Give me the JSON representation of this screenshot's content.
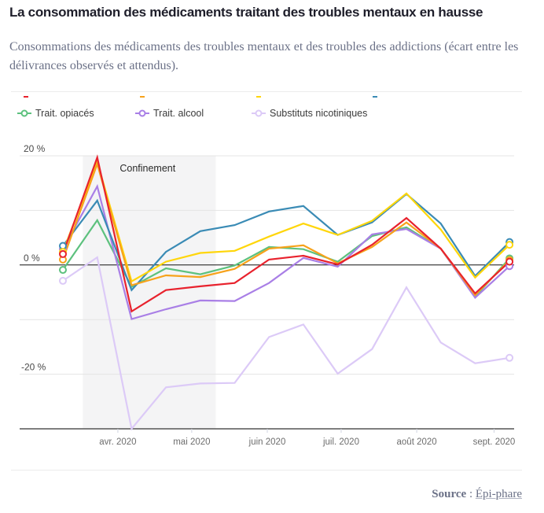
{
  "header": {
    "title": "La consommation des médicaments traitant des troubles mentaux en hausse",
    "subtitle": "Consommations des médicaments des troubles mentaux et des troubles des addictions (écart entre les délivrances observés et attendus)."
  },
  "legend": {
    "clipped_row_colors": [
      "#e8222d",
      "#f7a21b",
      "#ffd60a",
      "#3a8bb5"
    ],
    "visible_items": [
      {
        "label": "Trait. opiacés",
        "color": "#5dc17e"
      },
      {
        "label": "Trait. alcool",
        "color": "#a97fe6"
      },
      {
        "label": "Substituts nicotiniques",
        "color": "#dccaf7"
      }
    ]
  },
  "footer": {
    "source_label": "Source",
    "source_sep": " : ",
    "source_link": "Épi-phare"
  },
  "chart_data": {
    "type": "line",
    "title": "La consommation des médicaments traitant des troubles mentaux en hausse",
    "xlabel": "",
    "ylabel": "",
    "ylim": [
      -30,
      20
    ],
    "yticks": [
      20,
      10,
      0,
      -10,
      -20,
      -30
    ],
    "ytick_labels": [
      {
        "value": 20,
        "label": "20 %"
      },
      {
        "value": 0,
        "label": "0 %"
      },
      {
        "value": -20,
        "label": "-20 %"
      }
    ],
    "x_period_index": [
      0,
      1,
      2,
      3,
      4,
      5,
      6,
      7,
      8,
      9,
      10,
      11,
      12,
      13
    ],
    "xticks": [
      {
        "index": 1.6,
        "label": "avr. 2020"
      },
      {
        "index": 3.75,
        "label": "mai 2020"
      },
      {
        "index": 5.95,
        "label": "juin 2020"
      },
      {
        "index": 8.1,
        "label": "juil. 2020"
      },
      {
        "index": 10.3,
        "label": "août 2020"
      },
      {
        "index": 12.55,
        "label": "sept. 2020"
      }
    ],
    "annotation": {
      "label": "Confinement",
      "x_start": 0.58,
      "x_end": 4.45
    },
    "grid": true,
    "legend_position": "top",
    "series": [
      {
        "name": "(masqué)",
        "color": "#e8222d",
        "values": [
          2.0,
          19.7,
          -8.5,
          -4.6,
          -3.9,
          -3.3,
          1.0,
          1.7,
          0.1,
          3.7,
          8.6,
          3.0,
          -5.2,
          0.6
        ]
      },
      {
        "name": "(masqué)",
        "color": "#f7a21b",
        "values": [
          1.0,
          18.5,
          -3.7,
          -1.9,
          -2.2,
          -0.7,
          3.0,
          3.6,
          0.3,
          3.3,
          7.8,
          3.0,
          -5.5,
          0.9
        ]
      },
      {
        "name": "(masqué)",
        "color": "#ffd60a",
        "values": [
          2.4,
          18.9,
          -3.0,
          0.6,
          2.2,
          2.6,
          5.2,
          7.6,
          5.5,
          8.1,
          13.1,
          6.5,
          -2.3,
          3.7
        ]
      },
      {
        "name": "(masqué)",
        "color": "#3a8bb5",
        "values": [
          3.5,
          11.8,
          -4.6,
          2.4,
          6.2,
          7.3,
          9.8,
          10.8,
          5.5,
          7.8,
          13.0,
          7.6,
          -2.0,
          4.2
        ]
      },
      {
        "name": "Trait. opiacés",
        "color": "#5dc17e",
        "values": [
          -0.9,
          8.2,
          -4.0,
          -0.6,
          -1.7,
          -0.1,
          3.3,
          2.9,
          0.6,
          5.3,
          6.9,
          3.0,
          -5.8,
          1.2
        ]
      },
      {
        "name": "Trait. alcool",
        "color": "#a97fe6",
        "values": [
          2.9,
          14.4,
          -9.9,
          -8.1,
          -6.5,
          -6.6,
          -3.3,
          1.3,
          -0.3,
          5.6,
          6.6,
          3.0,
          -6.0,
          -0.2
        ]
      },
      {
        "name": "Substituts nicotiniques",
        "color": "#dccaf7",
        "values": [
          -2.9,
          1.4,
          -30.0,
          -22.4,
          -21.7,
          -21.6,
          -13.2,
          -10.9,
          -19.9,
          -15.4,
          -4.1,
          -14.2,
          -18.0,
          -17.0
        ]
      }
    ]
  }
}
